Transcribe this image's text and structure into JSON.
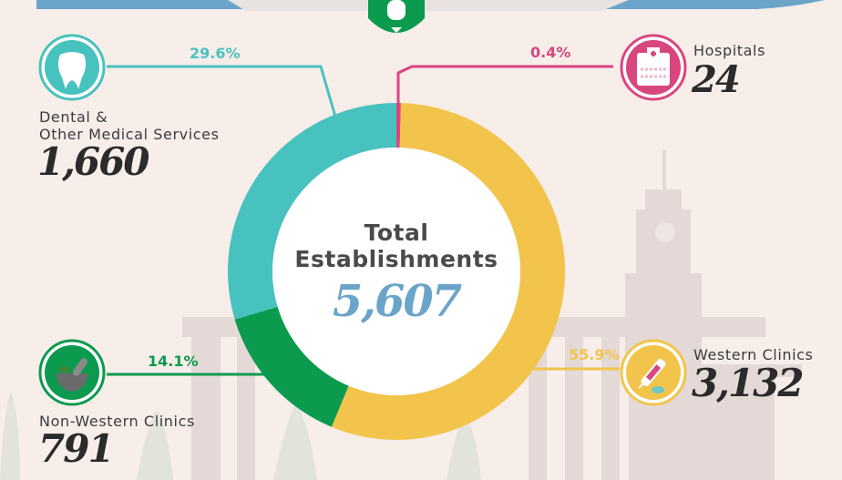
{
  "chart_data": {
    "type": "donut",
    "center": {
      "title_line1": "Total",
      "title_line2": "Establishments",
      "total": "5,607"
    },
    "segments": [
      {
        "name": "Hospitals",
        "value": 24,
        "value_label": "24",
        "percent": 0.4,
        "percent_label": "0.4%",
        "color": "#d9467f",
        "icon": "hospital-icon"
      },
      {
        "name": "Western Clinics",
        "value": 3132,
        "value_label": "3,132",
        "percent": 55.9,
        "percent_label": "55.9%",
        "color": "#f2c44b",
        "icon": "syringe-pill-icon"
      },
      {
        "name": "Non-Western Clinics",
        "value": 791,
        "value_label": "791",
        "percent": 14.1,
        "percent_label": "14.1%",
        "color": "#0b9a4e",
        "icon": "mortar-pestle-icon"
      },
      {
        "name": "Dental & Other Medical Services",
        "name_line1": "Dental &",
        "name_line2": "Other Medical Services",
        "value": 1660,
        "value_label": "1,660",
        "percent": 29.6,
        "percent_label": "29.6%",
        "color": "#48c2bf",
        "icon": "tooth-icon"
      }
    ]
  },
  "colors": {
    "background": "#f7ede9",
    "building": "#e4d9d6",
    "top_banner": "#6aa5c9",
    "badge": "#0b9a4e",
    "total_text": "#6aa5c9"
  }
}
